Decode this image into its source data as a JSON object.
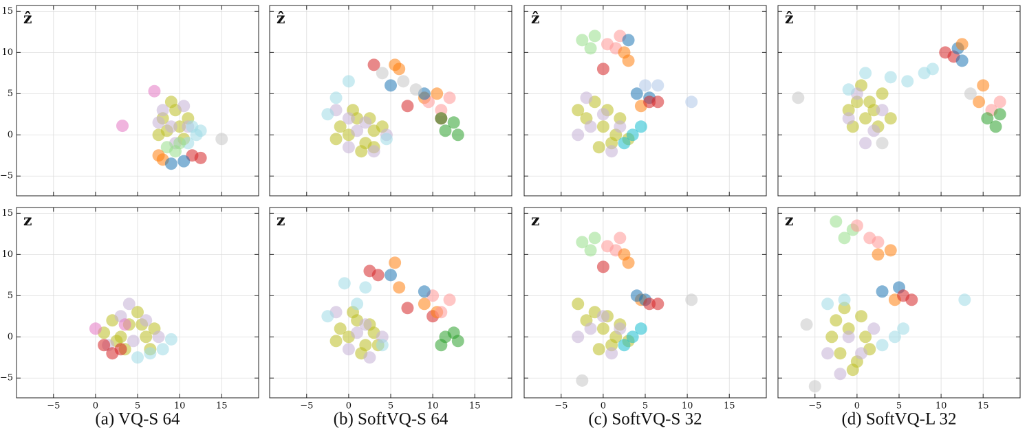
{
  "captions": [
    "(a) VQ-S 64",
    "(b) SoftVQ-S 64",
    "(c) SoftVQ-S 32",
    "(d) SoftVQ-L 32"
  ],
  "chart_data": [
    {
      "type": "scatter",
      "label": "ẑ",
      "xlim": [
        -9.4,
        19.4
      ],
      "ylim": [
        -7.4,
        15.7
      ],
      "xticks": [
        -5,
        0,
        5,
        10,
        15
      ],
      "yticks": [
        {
          "value": -5,
          "label": "−5"
        },
        0,
        5,
        10,
        15
      ],
      "grid": true,
      "series": [
        {
          "color": "#bcbd22",
          "x": [
            8,
            9.5,
            11,
            8.5,
            10,
            9,
            7.5,
            10.5
          ],
          "y": [
            2,
            3,
            2,
            0.5,
            1,
            4,
            0,
            -0.5
          ]
        },
        {
          "color": "#c5b0d5",
          "x": [
            9,
            10.5,
            8,
            11,
            9.5,
            7.5
          ],
          "y": [
            1,
            3.5,
            3,
            1,
            -1,
            1.5
          ]
        },
        {
          "color": "#9edae5",
          "x": [
            11.5,
            12,
            11,
            12.5
          ],
          "y": [
            1,
            0,
            -1,
            0.5
          ]
        },
        {
          "color": "#98df8a",
          "x": [
            8.5,
            9.5,
            10
          ],
          "y": [
            -1.5,
            -2,
            -1
          ]
        },
        {
          "color": "#ff7f0e",
          "x": [
            7.5,
            8
          ],
          "y": [
            -2.5,
            -3
          ]
        },
        {
          "color": "#d62728",
          "x": [
            11.5,
            12.5
          ],
          "y": [
            -2.5,
            -2.8
          ]
        },
        {
          "color": "#1f77b4",
          "x": [
            9,
            10.5
          ],
          "y": [
            -3.5,
            -3.2
          ]
        },
        {
          "color": "#e377c2",
          "x": [
            3.2,
            7
          ],
          "y": [
            1.1,
            5.3
          ]
        },
        {
          "color": "#c7c7c7",
          "x": [
            15
          ],
          "y": [
            -0.5
          ]
        }
      ]
    },
    {
      "type": "scatter",
      "label": "ẑ",
      "xlim": [
        -9.4,
        19.4
      ],
      "ylim": [
        -7.4,
        15.7
      ],
      "xticks": [
        -5,
        0,
        5,
        10,
        15
      ],
      "yticks": [
        -5,
        0,
        5,
        10,
        15
      ],
      "grid": true,
      "series": [
        {
          "color": "#bcbd22",
          "x": [
            -1,
            0,
            1,
            2,
            3,
            0.5,
            -1.5,
            1.5,
            2.5,
            4,
            3
          ],
          "y": [
            1,
            0,
            2,
            -1,
            0.5,
            3,
            -0.5,
            -2,
            2,
            1,
            -1.5
          ]
        },
        {
          "color": "#c5b0d5",
          "x": [
            -1.5,
            0,
            1,
            2,
            4.5,
            0,
            3
          ],
          "y": [
            3,
            -1.5,
            0.5,
            1.5,
            0,
            2,
            -2
          ]
        },
        {
          "color": "#9edae5",
          "x": [
            0,
            -2.5,
            4.5,
            -1.5
          ],
          "y": [
            6.5,
            2.5,
            -0.5,
            4.5
          ]
        },
        {
          "color": "#d62728",
          "x": [
            3,
            7,
            11
          ],
          "y": [
            8.5,
            3.5,
            2
          ]
        },
        {
          "color": "#ff7f0e",
          "x": [
            5.5,
            9,
            10.5,
            6
          ],
          "y": [
            8.5,
            4.5,
            5,
            8
          ]
        },
        {
          "color": "#ff9896",
          "x": [
            11,
            12,
            9.5
          ],
          "y": [
            3,
            4.5,
            4
          ]
        },
        {
          "color": "#2ca02c",
          "x": [
            11.5,
            12.5,
            11,
            13
          ],
          "y": [
            0.5,
            1.5,
            2,
            0
          ]
        },
        {
          "color": "#1f77b4",
          "x": [
            5,
            9
          ],
          "y": [
            6,
            5
          ]
        },
        {
          "color": "#c7c7c7",
          "x": [
            4,
            6.5,
            8
          ],
          "y": [
            7.5,
            6.5,
            5.5
          ]
        }
      ]
    },
    {
      "type": "scatter",
      "label": "ẑ",
      "xlim": [
        -9.4,
        19.4
      ],
      "ylim": [
        -7.4,
        15.7
      ],
      "xticks": [
        -5,
        0,
        5,
        10,
        15
      ],
      "yticks": [
        -5,
        0,
        5,
        10,
        15
      ],
      "grid": true,
      "series": [
        {
          "color": "#bcbd22",
          "x": [
            -2,
            -1,
            0,
            1,
            2,
            -3,
            0.5,
            -0.5,
            1.5,
            3
          ],
          "y": [
            2,
            4,
            1,
            -1,
            2,
            3,
            3,
            -1.5,
            0,
            -0.5
          ]
        },
        {
          "color": "#c5b0d5",
          "x": [
            -3,
            -1.5,
            0,
            2,
            1,
            -2
          ],
          "y": [
            0,
            1,
            2.5,
            1,
            -2,
            4.5
          ]
        },
        {
          "color": "#17becf",
          "x": [
            3.5,
            4.5,
            2.5
          ],
          "y": [
            0,
            1,
            -1
          ]
        },
        {
          "color": "#98df8a",
          "x": [
            -2.5,
            -1.5,
            -1
          ],
          "y": [
            11.5,
            10.5,
            12
          ]
        },
        {
          "color": "#ff9896",
          "x": [
            0.5,
            1.5,
            2
          ],
          "y": [
            11,
            10.5,
            12
          ]
        },
        {
          "color": "#ff7f0e",
          "x": [
            2.5,
            3,
            4.5
          ],
          "y": [
            10,
            9,
            3.5
          ]
        },
        {
          "color": "#1f77b4",
          "x": [
            3,
            4,
            5.5
          ],
          "y": [
            11.5,
            5,
            4.5
          ]
        },
        {
          "color": "#d62728",
          "x": [
            5.5,
            6.5,
            0
          ],
          "y": [
            4,
            4,
            8
          ]
        },
        {
          "color": "#aec7e8",
          "x": [
            5,
            6.5,
            10.5
          ],
          "y": [
            6,
            6,
            4
          ]
        }
      ]
    },
    {
      "type": "scatter",
      "label": "ẑ",
      "xlim": [
        -9.4,
        19.4
      ],
      "ylim": [
        -7.4,
        15.7
      ],
      "xticks": [
        -5,
        0,
        5,
        10,
        15
      ],
      "yticks": [
        -5,
        0,
        5,
        10,
        15
      ],
      "grid": true,
      "series": [
        {
          "color": "#bcbd22",
          "x": [
            -1,
            0,
            1,
            2,
            3,
            0.5,
            -0.5,
            2.5,
            1.5,
            4
          ],
          "y": [
            3,
            4,
            2,
            3,
            5,
            6,
            1,
            1,
            4,
            2
          ]
        },
        {
          "color": "#c5b0d5",
          "x": [
            0,
            2,
            -1,
            3,
            1
          ],
          "y": [
            5,
            0.5,
            2,
            3,
            -1
          ]
        },
        {
          "color": "#9edae5",
          "x": [
            4,
            6,
            8,
            9,
            -1,
            1
          ],
          "y": [
            7,
            6.5,
            7.5,
            8,
            5.5,
            7.5
          ]
        },
        {
          "color": "#d62728",
          "x": [
            10.5,
            11.5
          ],
          "y": [
            10,
            9.5
          ]
        },
        {
          "color": "#1f77b4",
          "x": [
            12,
            12.5
          ],
          "y": [
            10.5,
            9
          ]
        },
        {
          "color": "#ff7f0e",
          "x": [
            12.5,
            15,
            14.5
          ],
          "y": [
            11,
            6,
            4
          ]
        },
        {
          "color": "#ff9896",
          "x": [
            16,
            17
          ],
          "y": [
            3,
            4
          ]
        },
        {
          "color": "#2ca02c",
          "x": [
            15.5,
            16.5,
            17
          ],
          "y": [
            2,
            1,
            2.5
          ]
        },
        {
          "color": "#c7c7c7",
          "x": [
            -7,
            3,
            13.5
          ],
          "y": [
            4.5,
            -1,
            5
          ]
        }
      ]
    },
    {
      "type": "scatter",
      "label": "z",
      "xlim": [
        -9.4,
        19.4
      ],
      "ylim": [
        -7.4,
        15.7
      ],
      "xticks": [
        {
          "value": -5,
          "label": "−5"
        },
        0,
        5,
        10,
        15
      ],
      "yticks": [
        {
          "value": -5,
          "label": "−5"
        },
        0,
        5,
        10,
        15
      ],
      "grid": true,
      "series": [
        {
          "color": "#bcbd22",
          "x": [
            1,
            2,
            3,
            4,
            5,
            6,
            7,
            3.5,
            5.5,
            2.5,
            6.5
          ],
          "y": [
            0.5,
            2,
            0,
            1.5,
            3,
            0,
            1,
            -1.5,
            1.5,
            -0.5,
            -1.5
          ]
        },
        {
          "color": "#c5b0d5",
          "x": [
            1.5,
            3,
            4.5,
            6,
            7.5,
            4
          ],
          "y": [
            -1,
            2.5,
            -0.5,
            2,
            0,
            4
          ]
        },
        {
          "color": "#9edae5",
          "x": [
            5,
            6.5,
            8,
            9
          ],
          "y": [
            -2.5,
            -2,
            -1.5,
            -0.3
          ]
        },
        {
          "color": "#d62728",
          "x": [
            1,
            2,
            3
          ],
          "y": [
            -1,
            -2,
            -1.5
          ]
        },
        {
          "color": "#e377c2",
          "x": [
            0,
            3.5
          ],
          "y": [
            1,
            1.5
          ]
        }
      ]
    },
    {
      "type": "scatter",
      "label": "z",
      "xlim": [
        -9.4,
        19.4
      ],
      "ylim": [
        -7.4,
        15.7
      ],
      "xticks": [
        {
          "value": -5,
          "label": "−5"
        },
        0,
        5,
        10,
        15
      ],
      "yticks": [
        -5,
        0,
        5,
        10,
        15
      ],
      "grid": true,
      "series": [
        {
          "color": "#bcbd22",
          "x": [
            -1,
            0,
            1,
            2,
            3,
            0.5,
            -1.5,
            1.5,
            2.5,
            3.5
          ],
          "y": [
            1,
            0,
            2,
            -1,
            0.5,
            3,
            -0.5,
            -2,
            1.5,
            -1
          ]
        },
        {
          "color": "#c5b0d5",
          "x": [
            -1.5,
            0,
            1,
            2,
            4,
            2.5
          ],
          "y": [
            3,
            -1.5,
            0.5,
            1.5,
            0,
            -2.5
          ]
        },
        {
          "color": "#9edae5",
          "x": [
            -0.5,
            -2.5,
            4,
            2,
            1
          ],
          "y": [
            6.5,
            2.5,
            -1,
            6,
            4
          ]
        },
        {
          "color": "#d62728",
          "x": [
            2.5,
            3.5,
            10,
            7
          ],
          "y": [
            8,
            7.5,
            2.5,
            3.5
          ]
        },
        {
          "color": "#ff7f0e",
          "x": [
            5.5,
            6,
            9,
            10.5
          ],
          "y": [
            9,
            6,
            4,
            3
          ]
        },
        {
          "color": "#ff9896",
          "x": [
            11,
            12,
            10
          ],
          "y": [
            3,
            4.5,
            5
          ]
        },
        {
          "color": "#2ca02c",
          "x": [
            11.5,
            12.5,
            11,
            13
          ],
          "y": [
            0,
            0.5,
            -1,
            -0.5
          ]
        },
        {
          "color": "#1f77b4",
          "x": [
            5,
            9
          ],
          "y": [
            7.5,
            5.5
          ]
        }
      ]
    },
    {
      "type": "scatter",
      "label": "z",
      "xlim": [
        -9.4,
        19.4
      ],
      "ylim": [
        -7.4,
        15.7
      ],
      "xticks": [
        {
          "value": -5,
          "label": "−5"
        },
        0,
        5,
        10,
        15
      ],
      "yticks": [
        -5,
        0,
        5,
        10,
        15
      ],
      "grid": true,
      "series": [
        {
          "color": "#bcbd22",
          "x": [
            -2,
            -1,
            0,
            1,
            2,
            -3,
            0.5,
            -0.5,
            1.5,
            3
          ],
          "y": [
            2,
            3,
            1,
            -1,
            1.5,
            4,
            2.5,
            -1.5,
            0,
            -0.5
          ]
        },
        {
          "color": "#c5b0d5",
          "x": [
            -3,
            -1.5,
            0,
            2,
            1
          ],
          "y": [
            0,
            1,
            2.5,
            1,
            -2
          ]
        },
        {
          "color": "#17becf",
          "x": [
            3.5,
            4.5,
            2.5
          ],
          "y": [
            0,
            1,
            -1
          ]
        },
        {
          "color": "#98df8a",
          "x": [
            -2.5,
            -1.5,
            -1
          ],
          "y": [
            11.5,
            10.5,
            12
          ]
        },
        {
          "color": "#ff9896",
          "x": [
            0.5,
            1.5,
            2
          ],
          "y": [
            11,
            10.5,
            12
          ]
        },
        {
          "color": "#ff7f0e",
          "x": [
            2.5,
            3,
            4.5
          ],
          "y": [
            10,
            9,
            4.5
          ]
        },
        {
          "color": "#1f77b4",
          "x": [
            4,
            5
          ],
          "y": [
            5,
            4.5
          ]
        },
        {
          "color": "#d62728",
          "x": [
            5.5,
            6.5,
            0
          ],
          "y": [
            4,
            4,
            8.5
          ]
        },
        {
          "color": "#c7c7c7",
          "x": [
            10.5,
            -2.5
          ],
          "y": [
            4.5,
            -5.3
          ]
        }
      ]
    },
    {
      "type": "scatter",
      "label": "z",
      "xlim": [
        -9.4,
        19.4
      ],
      "ylim": [
        -7.4,
        15.7
      ],
      "xticks": [
        {
          "value": -5,
          "label": "−5"
        },
        0,
        5,
        10,
        15
      ],
      "yticks": [
        -5,
        0,
        5,
        10,
        15
      ],
      "grid": true,
      "series": [
        {
          "color": "#bcbd22",
          "x": [
            -3,
            -2,
            -1,
            0,
            1,
            -2.5,
            -0.5,
            0.5,
            -1.5,
            1.5
          ],
          "y": [
            0,
            -2,
            1,
            -3,
            0,
            2,
            -4,
            2.5,
            3.5,
            -1.5
          ]
        },
        {
          "color": "#c5b0d5",
          "x": [
            -3.5,
            -1,
            0.5,
            -2,
            2
          ],
          "y": [
            -2,
            0,
            -2,
            -4.5,
            1
          ]
        },
        {
          "color": "#9edae5",
          "x": [
            3,
            4.5,
            5.5,
            -3.5,
            -1.5,
            12.8
          ],
          "y": [
            -1,
            0,
            1,
            4,
            4.5,
            4.5
          ]
        },
        {
          "color": "#98df8a",
          "x": [
            -2.5,
            -1.5,
            -0.5
          ],
          "y": [
            14,
            12,
            13
          ]
        },
        {
          "color": "#ff9896",
          "x": [
            0,
            1.5,
            2.5
          ],
          "y": [
            13.5,
            12,
            11.5
          ]
        },
        {
          "color": "#ff7f0e",
          "x": [
            2.5,
            4,
            4.5
          ],
          "y": [
            10,
            10.5,
            4.5
          ]
        },
        {
          "color": "#1f77b4",
          "x": [
            3,
            5
          ],
          "y": [
            5.5,
            6
          ]
        },
        {
          "color": "#d62728",
          "x": [
            5.5,
            6.5
          ],
          "y": [
            5,
            4.5
          ]
        },
        {
          "color": "#c7c7c7",
          "x": [
            -6,
            -5
          ],
          "y": [
            1.5,
            -6
          ]
        }
      ]
    }
  ]
}
